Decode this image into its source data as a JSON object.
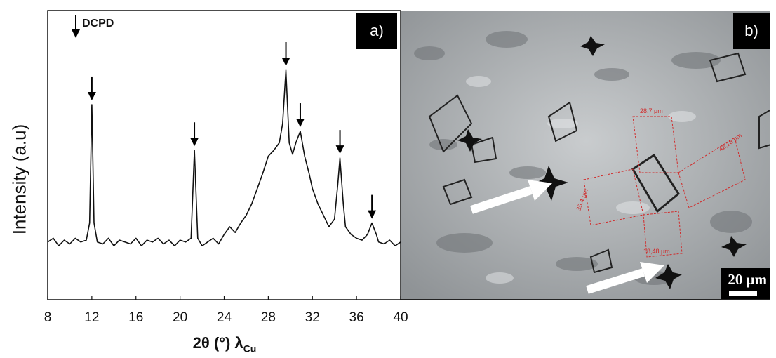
{
  "chart_data": {
    "type": "line",
    "panel_label": "a)",
    "xlabel": "2θ (°) λ",
    "xlabel_sub": "Cu",
    "ylabel": "Intensity (a.u)",
    "xlim": [
      8,
      40
    ],
    "x_ticks": [
      "8",
      "12",
      "16",
      "20",
      "24",
      "28",
      "32",
      "36",
      "40"
    ],
    "legend": {
      "marker": "down-arrow",
      "label": "DCPD"
    },
    "peaks_marked": [
      12.0,
      21.3,
      29.6,
      30.9,
      34.5,
      37.4
    ],
    "series": [
      {
        "x": [
          8.0,
          8.5,
          9.0,
          9.5,
          10.0,
          10.5,
          11.0,
          11.5,
          11.8,
          12.0,
          12.2,
          12.5,
          13.0,
          13.5,
          14.0,
          14.5,
          15.0,
          15.5,
          16.0,
          16.5,
          17.0,
          17.5,
          18.0,
          18.5,
          19.0,
          19.5,
          20.0,
          20.5,
          21.0,
          21.3,
          21.6,
          22.0,
          22.5,
          23.0,
          23.5,
          24.0,
          24.5,
          25.0,
          25.5,
          26.0,
          26.5,
          27.0,
          27.5,
          28.0,
          28.5,
          29.0,
          29.3,
          29.6,
          29.9,
          30.2,
          30.5,
          30.9,
          31.3,
          31.7,
          32.0,
          32.5,
          33.0,
          33.5,
          34.0,
          34.3,
          34.5,
          34.8,
          35.0,
          35.5,
          36.0,
          36.5,
          37.0,
          37.4,
          37.8,
          38.0,
          38.5,
          39.0,
          39.5,
          40.0
        ],
        "y": [
          0.1,
          0.12,
          0.08,
          0.11,
          0.09,
          0.12,
          0.1,
          0.11,
          0.2,
          0.82,
          0.2,
          0.1,
          0.09,
          0.12,
          0.08,
          0.11,
          0.1,
          0.09,
          0.12,
          0.08,
          0.11,
          0.1,
          0.12,
          0.09,
          0.11,
          0.08,
          0.11,
          0.1,
          0.12,
          0.58,
          0.12,
          0.08,
          0.1,
          0.12,
          0.09,
          0.14,
          0.18,
          0.15,
          0.2,
          0.24,
          0.3,
          0.38,
          0.46,
          0.55,
          0.58,
          0.62,
          0.72,
          1.0,
          0.62,
          0.56,
          0.62,
          0.68,
          0.55,
          0.46,
          0.38,
          0.3,
          0.24,
          0.18,
          0.22,
          0.4,
          0.54,
          0.3,
          0.18,
          0.14,
          0.12,
          0.11,
          0.14,
          0.2,
          0.14,
          0.1,
          0.09,
          0.11,
          0.08,
          0.1
        ]
      }
    ]
  },
  "photo": {
    "panel_label": "b)",
    "scale_bar_label": "20 μm",
    "measurement_labels": [
      "28,7 μm",
      "42,18 μm",
      "35,4 μm",
      "18,48 μm"
    ]
  }
}
